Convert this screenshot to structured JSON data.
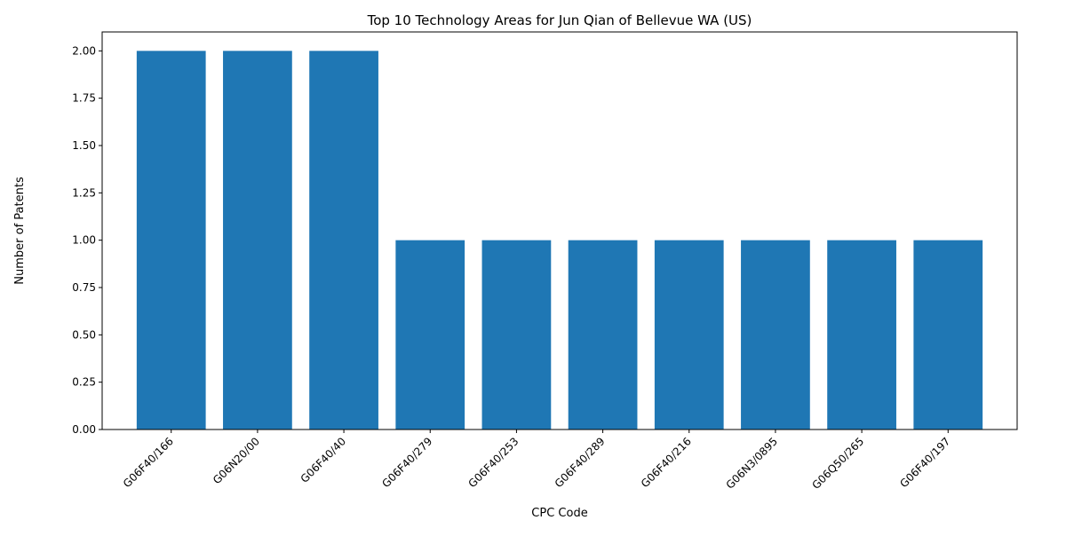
{
  "chart_data": {
    "type": "bar",
    "title": "Top 10 Technology Areas for Jun Qian of Bellevue WA (US)",
    "xlabel": "CPC Code",
    "ylabel": "Number of Patents",
    "categories": [
      "G06F40/166",
      "G06N20/00",
      "G06F40/40",
      "G06F40/279",
      "G06F40/253",
      "G06F40/289",
      "G06F40/216",
      "G06N3/0895",
      "G06Q50/265",
      "G06F40/197"
    ],
    "values": [
      2,
      2,
      2,
      1,
      1,
      1,
      1,
      1,
      1,
      1
    ],
    "ylim": [
      0,
      2.1
    ],
    "yticks": [
      0.0,
      0.25,
      0.5,
      0.75,
      1.0,
      1.25,
      1.5,
      1.75,
      2.0
    ],
    "ytick_labels": [
      "0.00",
      "0.25",
      "0.50",
      "0.75",
      "1.00",
      "1.25",
      "1.50",
      "1.75",
      "2.00"
    ],
    "bar_color": "#1f77b4",
    "grid": false,
    "legend": "none"
  }
}
